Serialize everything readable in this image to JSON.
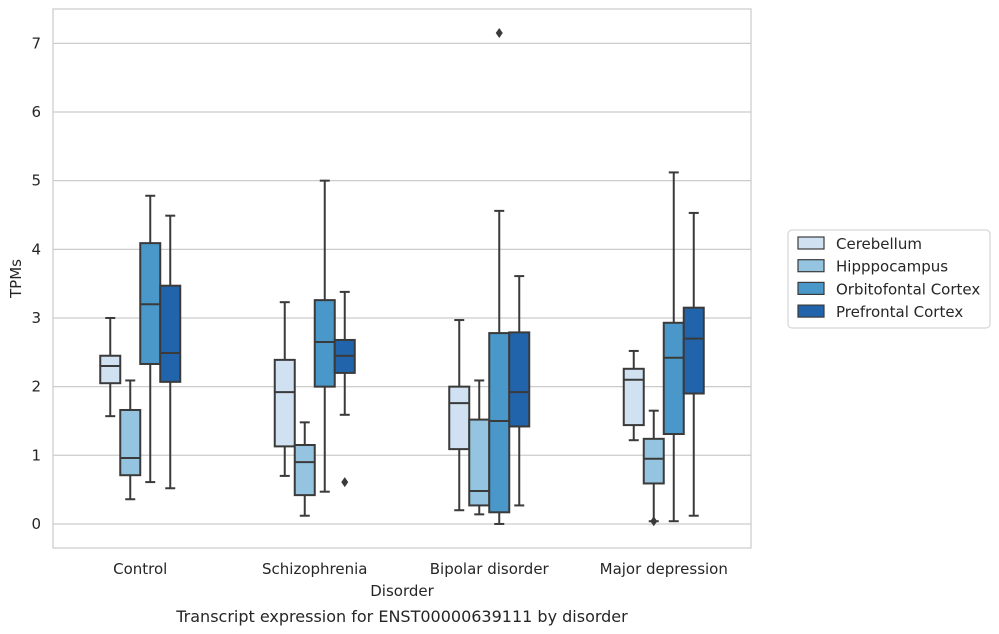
{
  "chart_data": {
    "type": "boxplot",
    "title": "Transcript expression for ENST00000639111 by disorder",
    "xlabel": "Disorder",
    "ylabel": "TPMs",
    "ylim": [
      -0.35,
      7.5
    ],
    "yticks": [
      0,
      1,
      2,
      3,
      4,
      5,
      6,
      7
    ],
    "grid": "horizontal",
    "legend_position": "right",
    "categories": [
      "Control",
      "Schizophrenia",
      "Bipolar disorder",
      "Major depression"
    ],
    "series": [
      {
        "name": "Cerebellum",
        "color": "#d0e1f2",
        "boxes": [
          {
            "whislo": 1.57,
            "q1": 2.05,
            "med": 2.3,
            "q3": 2.45,
            "whishi": 3.0,
            "fliers": []
          },
          {
            "whislo": 0.7,
            "q1": 1.13,
            "med": 1.92,
            "q3": 2.39,
            "whishi": 3.23,
            "fliers": []
          },
          {
            "whislo": 0.2,
            "q1": 1.09,
            "med": 1.76,
            "q3": 2.0,
            "whishi": 2.97,
            "fliers": []
          },
          {
            "whislo": 1.22,
            "q1": 1.44,
            "med": 2.1,
            "q3": 2.26,
            "whishi": 2.52,
            "fliers": []
          }
        ]
      },
      {
        "name": "Hipppocampus",
        "color": "#94c4df",
        "boxes": [
          {
            "whislo": 0.36,
            "q1": 0.71,
            "med": 0.96,
            "q3": 1.66,
            "whishi": 2.09,
            "fliers": []
          },
          {
            "whislo": 0.12,
            "q1": 0.42,
            "med": 0.9,
            "q3": 1.15,
            "whishi": 1.48,
            "fliers": []
          },
          {
            "whislo": 0.14,
            "q1": 0.27,
            "med": 0.48,
            "q3": 1.52,
            "whishi": 2.09,
            "fliers": []
          },
          {
            "whislo": 0.04,
            "q1": 0.59,
            "med": 0.95,
            "q3": 1.24,
            "whishi": 1.65,
            "fliers": [
              0.04
            ]
          }
        ]
      },
      {
        "name": "Orbitofontal Cortex",
        "color": "#4a98c9",
        "boxes": [
          {
            "whislo": 0.61,
            "q1": 2.33,
            "med": 3.2,
            "q3": 4.09,
            "whishi": 4.78,
            "fliers": []
          },
          {
            "whislo": 0.47,
            "q1": 2.0,
            "med": 2.65,
            "q3": 3.26,
            "whishi": 5.0,
            "fliers": []
          },
          {
            "whislo": 0.0,
            "q1": 0.17,
            "med": 1.5,
            "q3": 2.78,
            "whishi": 4.56,
            "fliers": [
              7.15
            ]
          },
          {
            "whislo": 0.04,
            "q1": 1.31,
            "med": 2.42,
            "q3": 2.93,
            "whishi": 5.12,
            "fliers": []
          }
        ]
      },
      {
        "name": "Prefrontal Cortex",
        "color": "#2164ab",
        "boxes": [
          {
            "whislo": 0.52,
            "q1": 2.07,
            "med": 2.49,
            "q3": 3.47,
            "whishi": 4.49,
            "fliers": []
          },
          {
            "whislo": 1.59,
            "q1": 2.2,
            "med": 2.45,
            "q3": 2.68,
            "whishi": 3.38,
            "fliers": [
              0.61
            ]
          },
          {
            "whislo": 0.27,
            "q1": 1.42,
            "med": 1.92,
            "q3": 2.79,
            "whishi": 3.61,
            "fliers": []
          },
          {
            "whislo": 0.12,
            "q1": 1.9,
            "med": 2.7,
            "q3": 3.15,
            "whishi": 4.53,
            "fliers": []
          }
        ]
      }
    ]
  }
}
